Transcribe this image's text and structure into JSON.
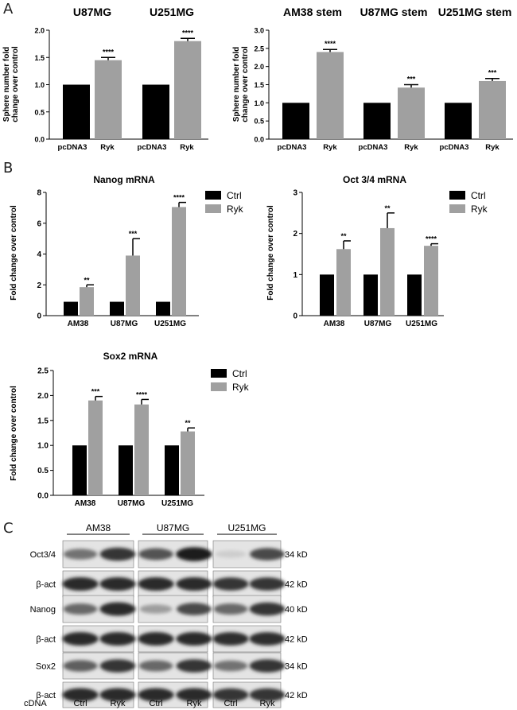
{
  "panel_labels": {
    "a": "A",
    "b": "B",
    "c": "C"
  },
  "chart_data": [
    {
      "id": "a1",
      "type": "bar",
      "groups": [
        "U87MG",
        "U251MG"
      ],
      "categories": [
        "pcDNA3",
        "Ryk"
      ],
      "ylabel": "Sphere number fold change over control",
      "ylim": [
        0,
        2.0
      ],
      "yticks": [
        "0.0",
        "0.5",
        "1.0",
        "1.5",
        "2.0"
      ],
      "values": [
        [
          1.0,
          1.45
        ],
        [
          1.0,
          1.8
        ]
      ],
      "errors": [
        [
          0,
          0.05
        ],
        [
          0,
          0.05
        ]
      ],
      "significance": [
        [
          "",
          "****"
        ],
        [
          "",
          "****"
        ]
      ],
      "colors": [
        "#000000",
        "#a0a0a0"
      ]
    },
    {
      "id": "a2",
      "type": "bar",
      "groups": [
        "AM38 stem",
        "U87MG stem",
        "U251MG stem"
      ],
      "categories": [
        "pcDNA3",
        "Ryk"
      ],
      "ylabel": "Sphere number fold change over control",
      "ylim": [
        0,
        3.0
      ],
      "yticks": [
        "0.0",
        "0.5",
        "1.0",
        "1.5",
        "2.0",
        "2.5",
        "3.0"
      ],
      "values": [
        [
          1.0,
          2.4
        ],
        [
          1.0,
          1.42
        ],
        [
          1.0,
          1.6
        ]
      ],
      "errors": [
        [
          0,
          0.07
        ],
        [
          0,
          0.08
        ],
        [
          0,
          0.07
        ]
      ],
      "significance": [
        [
          "",
          "****"
        ],
        [
          "",
          "***"
        ],
        [
          "",
          "***"
        ]
      ],
      "colors": [
        "#000000",
        "#a0a0a0"
      ]
    },
    {
      "id": "b1",
      "type": "bar",
      "title": "Nanog mRNA",
      "categories": [
        "AM38",
        "U87MG",
        "U251MG"
      ],
      "ylabel": "Fold change over control",
      "ylim": [
        0,
        8
      ],
      "yticks": [
        "0",
        "2",
        "4",
        "6",
        "8"
      ],
      "series": [
        {
          "name": "Ctrl",
          "values": [
            0.9,
            0.9,
            0.9
          ],
          "errors": [
            0,
            0,
            0
          ],
          "color": "#000000"
        },
        {
          "name": "Ryk",
          "values": [
            1.85,
            3.9,
            7.05
          ],
          "errors": [
            0.15,
            1.1,
            0.3
          ],
          "color": "#a0a0a0"
        }
      ],
      "significance": [
        "**",
        "***",
        "****"
      ]
    },
    {
      "id": "b2",
      "type": "bar",
      "title": "Oct 3/4 mRNA",
      "categories": [
        "AM38",
        "U87MG",
        "U251MG"
      ],
      "ylabel": "Fold change over control",
      "ylim": [
        0,
        3
      ],
      "yticks": [
        "0",
        "1",
        "2",
        "3"
      ],
      "series": [
        {
          "name": "Ctrl",
          "values": [
            1.0,
            1.0,
            1.0
          ],
          "errors": [
            0,
            0,
            0
          ],
          "color": "#000000"
        },
        {
          "name": "Ryk",
          "values": [
            1.62,
            2.13,
            1.7
          ],
          "errors": [
            0.2,
            0.37,
            0.05
          ],
          "color": "#a0a0a0"
        }
      ],
      "significance": [
        "**",
        "**",
        "****"
      ]
    },
    {
      "id": "b3",
      "type": "bar",
      "title": "Sox2 mRNA",
      "categories": [
        "AM38",
        "U87MG",
        "U251MG"
      ],
      "ylabel": "Fold change over control",
      "ylim": [
        0,
        2.5
      ],
      "yticks": [
        "0.0",
        "0.5",
        "1.0",
        "1.5",
        "2.0",
        "2.5"
      ],
      "series": [
        {
          "name": "Ctrl",
          "values": [
            1.0,
            1.0,
            1.0
          ],
          "errors": [
            0,
            0,
            0
          ],
          "color": "#000000"
        },
        {
          "name": "Ryk",
          "values": [
            1.9,
            1.82,
            1.28
          ],
          "errors": [
            0.08,
            0.1,
            0.07
          ],
          "color": "#a0a0a0"
        }
      ],
      "significance": [
        "***",
        "****",
        "**"
      ]
    }
  ],
  "western_blot": {
    "cell_lines": [
      "AM38",
      "U87MG",
      "U251MG"
    ],
    "rows": [
      {
        "label": "Oct3/4",
        "kd": "34 kD"
      },
      {
        "label": "β-act",
        "kd": "42 kD"
      },
      {
        "label": "Nanog",
        "kd": "40 kD"
      },
      {
        "label": "β-act",
        "kd": "42 kD"
      },
      {
        "label": "Sox2",
        "kd": "34 kD"
      },
      {
        "label": "β-act",
        "kd": "42 kD"
      }
    ],
    "band_intensity": [
      [
        [
          0.55,
          0.85
        ],
        [
          0.7,
          0.95
        ],
        [
          0.12,
          0.75
        ]
      ],
      [
        [
          0.9,
          0.9
        ],
        [
          0.9,
          0.9
        ],
        [
          0.85,
          0.85
        ]
      ],
      [
        [
          0.6,
          0.9
        ],
        [
          0.35,
          0.75
        ],
        [
          0.6,
          0.85
        ]
      ],
      [
        [
          0.9,
          0.9
        ],
        [
          0.9,
          0.9
        ],
        [
          0.88,
          0.88
        ]
      ],
      [
        [
          0.65,
          0.85
        ],
        [
          0.6,
          0.85
        ],
        [
          0.55,
          0.85
        ]
      ],
      [
        [
          0.9,
          0.9
        ],
        [
          0.9,
          0.9
        ],
        [
          0.85,
          0.85
        ]
      ]
    ],
    "cdna_label": "cDNA",
    "lane_labels": [
      "Ctrl",
      "Ryk"
    ]
  }
}
